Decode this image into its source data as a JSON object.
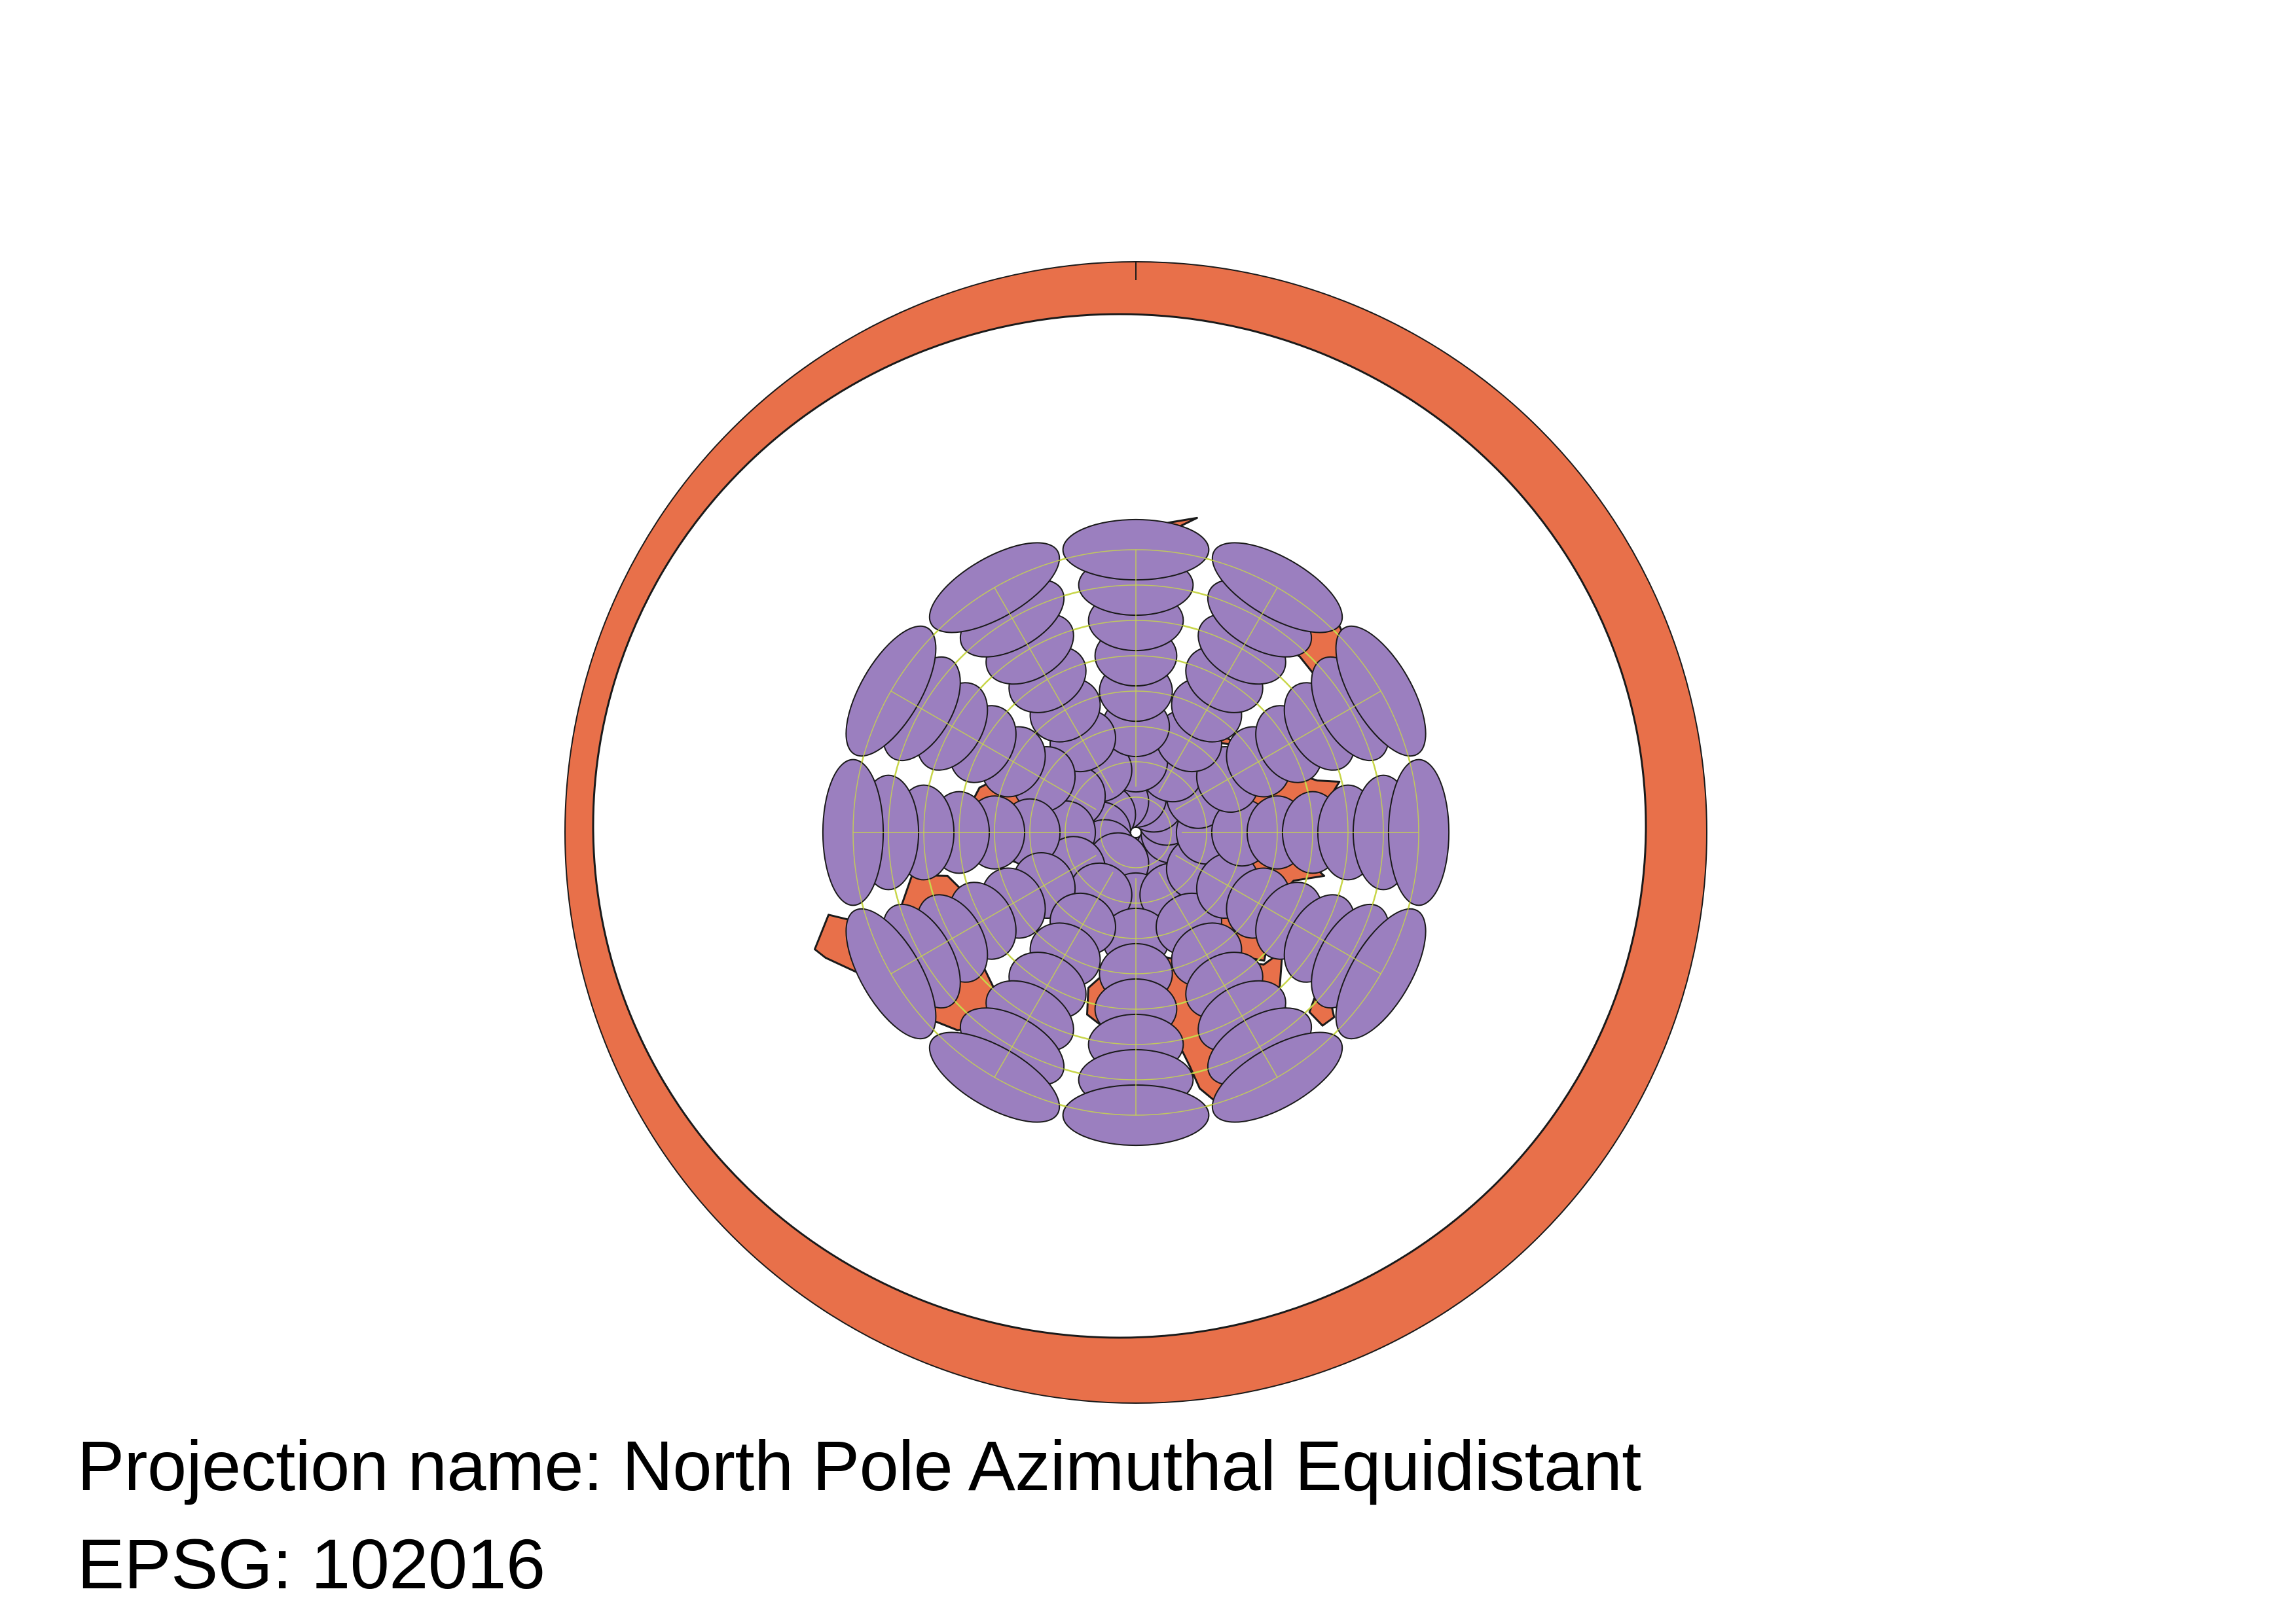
{
  "map": {
    "projection_label": "Projection name:",
    "projection_name": "North Pole Azimuthal Equidistant",
    "epsg_label": "EPSG:",
    "epsg_code": "102016",
    "colors": {
      "land": "#e8704a",
      "ocean": "#ffffff",
      "outline": "#1a1a1a",
      "graticule": "#c8d64a",
      "tissot": "#9b7fbf"
    },
    "graticule": {
      "latitude_circles_deg": [
        75,
        60,
        45,
        30,
        15,
        0,
        -15,
        -30
      ],
      "meridian_spacing_deg": 30
    },
    "tissot_indicatrix": {
      "latitudes_deg": [
        75,
        60,
        45,
        30,
        15,
        0,
        -15,
        -30
      ],
      "longitude_spacing_deg": 30
    }
  }
}
